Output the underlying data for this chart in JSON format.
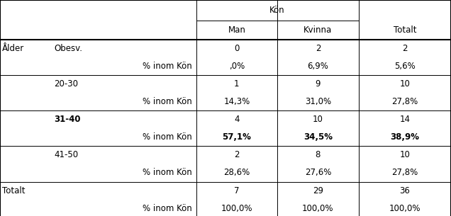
{
  "header_kon": "Kön",
  "col_headers": [
    "Man",
    "Kvinna",
    "Totalt"
  ],
  "row_label_1": "Ålder",
  "rows": [
    {
      "label1": "Obesv.",
      "label2": "% inom Kön",
      "bold": false,
      "values": [
        "0",
        "2",
        "2"
      ],
      "pct": [
        ",0%",
        "6,9%",
        "5,6%"
      ],
      "pct_bold": false
    },
    {
      "label1": "20-30",
      "label2": "% inom Kön",
      "bold": false,
      "values": [
        "1",
        "9",
        "10"
      ],
      "pct": [
        "14,3%",
        "31,0%",
        "27,8%"
      ],
      "pct_bold": false
    },
    {
      "label1": "31-40",
      "label2": "% inom Kön",
      "bold": true,
      "values": [
        "4",
        "10",
        "14"
      ],
      "pct": [
        "57,1%",
        "34,5%",
        "38,9%"
      ],
      "pct_bold": true
    },
    {
      "label1": "41-50",
      "label2": "% inom Kön",
      "bold": false,
      "values": [
        "2",
        "8",
        "10"
      ],
      "pct": [
        "28,6%",
        "27,6%",
        "27,8%"
      ],
      "pct_bold": false
    }
  ],
  "total_label1": "Totalt",
  "total_label2": "% inom Kön",
  "total_values": [
    "7",
    "29",
    "36"
  ],
  "total_pct": [
    "100,0%",
    "100,0%",
    "100,0%"
  ],
  "bg_color": "#ffffff",
  "font_size": 8.5,
  "lw_thick": 1.5,
  "lw_thin": 0.7
}
